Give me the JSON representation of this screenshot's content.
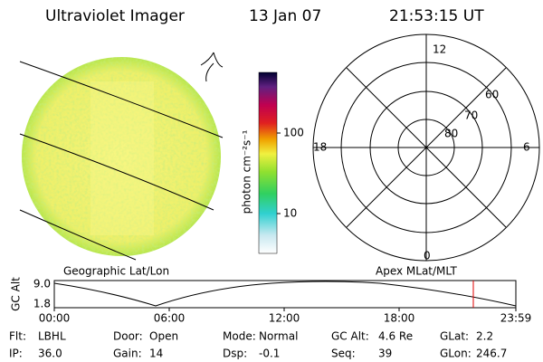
{
  "header": {
    "title": "Ultraviolet Imager",
    "date": "13 Jan 07",
    "time": "21:53:15 UT"
  },
  "colorbar": {
    "unit": "photon cm⁻²s⁻¹",
    "ticks": [
      "100",
      "10"
    ]
  },
  "polar": {
    "mlt_labels": [
      "12",
      "6",
      "18",
      "0"
    ],
    "lat_labels": [
      "60",
      "70",
      "80"
    ]
  },
  "orbit": {
    "left_label": "Geographic Lat/Lon",
    "right_label": "Apex MLat/MLT",
    "y_title": "GC Alt",
    "yticks": [
      "9.0",
      "1.8"
    ],
    "xticks": [
      "00:00",
      "06:00",
      "12:00",
      "18:00",
      "23:59"
    ]
  },
  "footer": {
    "rows": [
      [
        {
          "label": "Flt:",
          "value": "LBHL"
        },
        {
          "label": "Door:",
          "value": "Open"
        },
        {
          "label": "Mode:",
          "value": "Normal"
        },
        {
          "label": "GC Alt:",
          "value": "4.6 Re"
        },
        {
          "label": "GLat:",
          "value": "2.2"
        }
      ],
      [
        {
          "label": "IP:",
          "value": "36.0"
        },
        {
          "label": "Gain:",
          "value": "14"
        },
        {
          "label": "Dsp:",
          "value": "-0.1"
        },
        {
          "label": "Seq:",
          "value": "39"
        },
        {
          "label": "GLon:",
          "value": "246.7"
        }
      ]
    ]
  }
}
